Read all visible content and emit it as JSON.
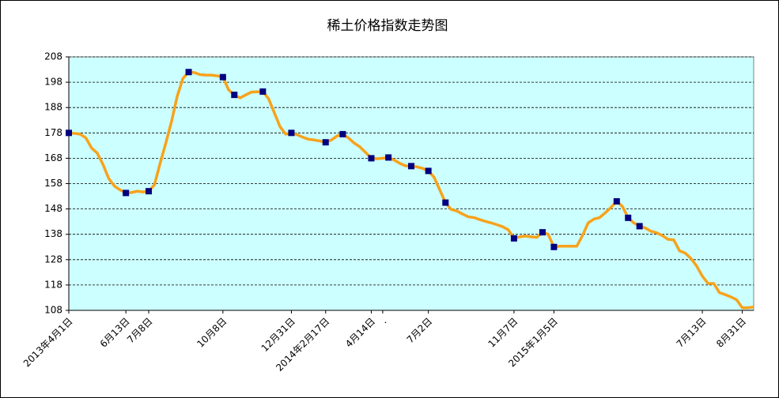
{
  "chart_data": {
    "type": "line",
    "title": "稀土价格指数走势图",
    "categories": [
      "2013年4月1日",
      null,
      null,
      null,
      null,
      null,
      null,
      null,
      null,
      null,
      "6月13日",
      null,
      null,
      null,
      "7月8日",
      null,
      null,
      null,
      null,
      null,
      null,
      null,
      null,
      null,
      null,
      null,
      null,
      "10月8日",
      null,
      null,
      null,
      null,
      null,
      null,
      null,
      null,
      null,
      null,
      null,
      "12月31日",
      null,
      null,
      null,
      null,
      null,
      "2014年2月17日",
      null,
      null,
      null,
      null,
      null,
      null,
      null,
      "4月14日",
      null,
      ".",
      null,
      null,
      null,
      null,
      null,
      null,
      null,
      "7月2日",
      null,
      null,
      null,
      null,
      null,
      null,
      null,
      null,
      null,
      null,
      null,
      null,
      null,
      null,
      "11月7日",
      null,
      null,
      null,
      null,
      null,
      null,
      "2015年1月5日",
      null,
      null,
      null,
      null,
      null,
      null,
      null,
      null,
      null,
      null,
      null,
      null,
      null,
      null,
      null,
      null,
      null,
      null,
      null,
      null,
      null,
      null,
      null,
      null,
      null,
      "7月13日",
      null,
      null,
      null,
      null,
      null,
      null,
      "8月31日",
      null,
      null
    ],
    "values": [
      178,
      177.8,
      177.5,
      176,
      172,
      170,
      165.5,
      160,
      157,
      155.5,
      154.3,
      154.5,
      155,
      154.7,
      155,
      157.5,
      166,
      174,
      182.5,
      192.5,
      199.5,
      202,
      201.8,
      201,
      200.8,
      200.8,
      200.5,
      200,
      195,
      193,
      191.8,
      193,
      194.1,
      194.2,
      194.3,
      191.5,
      186,
      180.5,
      177.5,
      178,
      177.3,
      176.3,
      175.5,
      175.2,
      174.8,
      174.3,
      175.2,
      176.8,
      177.5,
      176,
      174,
      172.5,
      170.3,
      168,
      167.8,
      168,
      168.3,
      167.3,
      166,
      165,
      164.9,
      164.6,
      164,
      163,
      160.5,
      155.5,
      150.5,
      147.8,
      147.2,
      146,
      144.9,
      144.6,
      143.8,
      143.1,
      142.5,
      141.8,
      141,
      139.8,
      136.4,
      137,
      137.3,
      137,
      136.8,
      138.8,
      138,
      133,
      133.3,
      133.3,
      133.3,
      133.3,
      137.5,
      142.5,
      144,
      144.6,
      146.5,
      148.6,
      151,
      149,
      144.5,
      142.5,
      141.2,
      140.5,
      139.2,
      138.6,
      137.5,
      136,
      135.8,
      131.5,
      130.6,
      128.5,
      125.5,
      121.5,
      118.6,
      118.6,
      115,
      114.2,
      113.3,
      112.2,
      109,
      109,
      109.3
    ],
    "markers": [
      0,
      10,
      14,
      21,
      27,
      29,
      34,
      39,
      45,
      48,
      53,
      56,
      60,
      63,
      66,
      78,
      83,
      85,
      96,
      98,
      100
    ],
    "color": "#f7a21b",
    "marker_color": "#000080",
    "plot_background": "#ccffff",
    "ylim": [
      108,
      208
    ],
    "yticks": [
      108,
      118,
      128,
      138,
      148,
      158,
      168,
      178,
      188,
      198,
      208
    ],
    "grid": true
  }
}
